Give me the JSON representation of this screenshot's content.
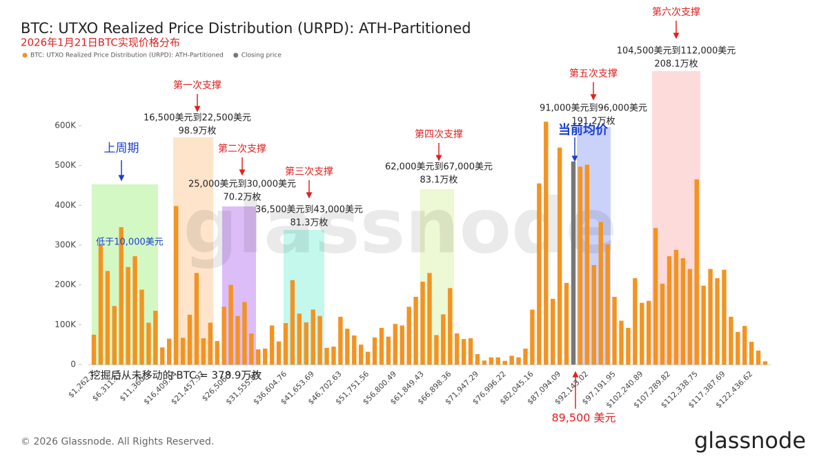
{
  "chart_data": {
    "type": "bar",
    "title": "BTC: UTXO Realized Price Distribution (URPD): ATH-Partitioned",
    "subtitle": "2026年1月21日BTC实现价格分布",
    "categories": [
      "$1,262.7",
      null,
      null,
      null,
      "$6,311.17",
      null,
      null,
      null,
      "$11,360.1",
      null,
      null,
      null,
      "$16,409.04",
      null,
      null,
      null,
      "$21,457.97",
      null,
      null,
      null,
      "$26,506.9",
      null,
      null,
      null,
      "$31,555.83",
      null,
      null,
      null,
      "$36,604.76",
      null,
      null,
      null,
      "$41,653.69",
      null,
      null,
      null,
      "$46,702.63",
      null,
      null,
      null,
      "$51,751.56",
      null,
      null,
      null,
      "$56,800.49",
      null,
      null,
      null,
      "$61,849.43",
      null,
      null,
      null,
      "$66,898.36",
      null,
      null,
      null,
      "$71,947.29",
      null,
      null,
      null,
      "$76,996.22",
      null,
      null,
      null,
      "$82,045.16",
      null,
      null,
      null,
      "$87,094.09",
      null,
      null,
      null,
      "$92,143.02",
      null,
      null,
      null,
      "$97,191.95",
      null,
      null,
      null,
      "$102,240.89",
      null,
      null,
      null,
      "$107,289.82",
      null,
      null,
      null,
      "$112,338.75",
      null,
      null,
      null,
      "$117,387.69",
      null,
      null,
      null,
      "$122,436.62",
      null,
      null
    ],
    "series": [
      {
        "name": "BTC: UTXO Realized Price Distribution (URPD): ATH-Partitioned",
        "color": "#f39322",
        "values": [
          75000,
          300000,
          235000,
          147000,
          345000,
          245000,
          272000,
          188000,
          105000,
          135000,
          43000,
          65000,
          398000,
          67000,
          125000,
          230000,
          66000,
          105000,
          59000,
          145000,
          200000,
          122000,
          157000,
          78000,
          38000,
          40000,
          98000,
          58000,
          104000,
          212000,
          128000,
          106000,
          138000,
          122000,
          42000,
          45000,
          120000,
          90000,
          73000,
          50000,
          32000,
          68000,
          92000,
          70000,
          102000,
          98000,
          145000,
          170000,
          208000,
          230000,
          74000,
          126000,
          192000,
          78000,
          64000,
          66000,
          26000,
          10000,
          18000,
          18000,
          9000,
          22000,
          18000,
          40000,
          138000,
          455000,
          610000,
          165000,
          545000,
          205000,
          null,
          497000,
          502000,
          250000,
          358000,
          302000,
          170000,
          110000,
          92000,
          217000,
          155000,
          160000,
          343000,
          203000,
          272000,
          288000,
          267000,
          240000,
          465000,
          198000,
          240000,
          217000,
          238000,
          120000,
          82000,
          97000,
          57000,
          35000,
          8000
        ]
      },
      {
        "name": "Closing price",
        "color": "#777777",
        "values": [
          null,
          null,
          null,
          null,
          null,
          null,
          null,
          null,
          null,
          null,
          null,
          null,
          null,
          null,
          null,
          null,
          null,
          null,
          null,
          null,
          null,
          null,
          null,
          null,
          null,
          null,
          null,
          null,
          null,
          null,
          null,
          null,
          null,
          null,
          null,
          null,
          null,
          null,
          null,
          null,
          null,
          null,
          null,
          null,
          null,
          null,
          null,
          null,
          null,
          null,
          null,
          null,
          null,
          null,
          null,
          null,
          null,
          null,
          null,
          null,
          null,
          null,
          null,
          null,
          null,
          null,
          null,
          null,
          null,
          null,
          510000,
          null,
          null,
          null,
          null,
          null,
          null,
          null,
          null,
          null,
          null,
          null,
          null,
          null,
          null,
          null,
          null,
          null,
          null,
          null,
          null,
          null,
          null,
          null,
          null,
          null,
          null,
          null,
          null
        ]
      }
    ],
    "ylim": [
      0,
      620000
    ],
    "yticks": [
      0,
      {
        "value": 100000,
        "label": "100K"
      },
      {
        "value": 200000,
        "label": "200K"
      },
      {
        "value": 300000,
        "label": "300K"
      },
      {
        "value": 400000,
        "label": "400K"
      },
      {
        "value": 500000,
        "label": "500K"
      },
      {
        "value": 600000,
        "label": "600K"
      }
    ],
    "grid": false,
    "supports": [
      {
        "label": "第一次支撑",
        "range": "16,500美元到22,500美元",
        "amount": "98.9万枚"
      },
      {
        "label": "第二次支撑",
        "range": "25,000美元到30,000美元",
        "amount": "70.2万枚"
      },
      {
        "label": "第三次支撑",
        "range": "36,500美元到43,000美元",
        "amount": "81.3万枚"
      },
      {
        "label": "第四次支撑",
        "range": "62,000美元到67,000美元",
        "amount": "83.1万枚"
      },
      {
        "label": "第五次支撑",
        "range": "91,000美元到96,000美元",
        "amount": "191.2万枚"
      },
      {
        "label": "第六次支撑",
        "range": "104,500美元到112,000美元",
        "amount": "208.1万枚"
      }
    ],
    "cycle_label": "上周期",
    "cycle_note": "低于10,000美元",
    "current_label": "当前均价",
    "current_price": "89,500 美元",
    "unmoved_note": "挖掘后从未移动的 BTC = 378.9万枚",
    "watermark": "glassnode",
    "footer": "© 2026 Glassnode. All Rights Reserved.",
    "logo": "glassnode"
  }
}
